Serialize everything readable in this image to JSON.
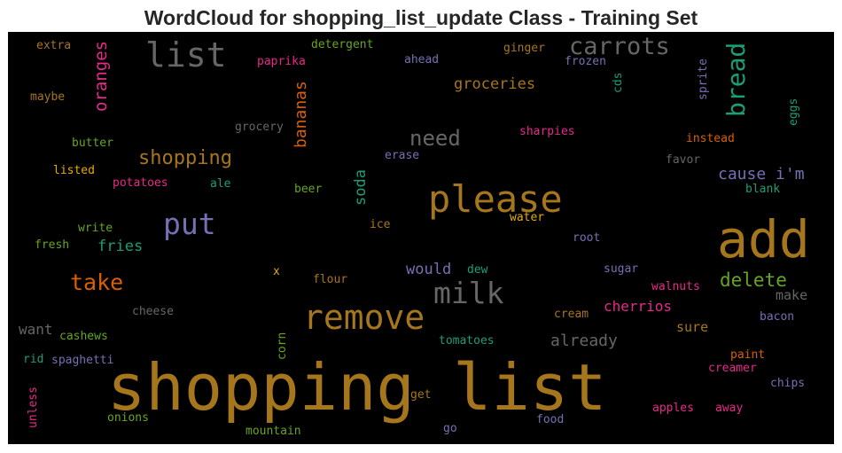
{
  "title": "WordCloud for shopping_list_update Class - Training Set",
  "chart_data": {
    "type": "wordcloud",
    "title": "WordCloud for shopping_list_update Class - Training Set",
    "background": "#000000",
    "colormap": "Dark2",
    "words": [
      {
        "text": "shopping list",
        "weight": 1.0,
        "color": "#a6761d",
        "orientation": "horizontal"
      },
      {
        "text": "add",
        "weight": 0.7,
        "color": "#a6761d",
        "orientation": "horizontal"
      },
      {
        "text": "please",
        "weight": 0.55,
        "color": "#a6761d",
        "orientation": "horizontal"
      },
      {
        "text": "remove",
        "weight": 0.5,
        "color": "#a6761d",
        "orientation": "horizontal"
      },
      {
        "text": "list",
        "weight": 0.5,
        "color": "#666666",
        "orientation": "horizontal"
      },
      {
        "text": "put",
        "weight": 0.42,
        "color": "#7570b3",
        "orientation": "horizontal"
      },
      {
        "text": "milk",
        "weight": 0.42,
        "color": "#666666",
        "orientation": "horizontal"
      },
      {
        "text": "carrots",
        "weight": 0.35,
        "color": "#666666",
        "orientation": "horizontal"
      },
      {
        "text": "bread",
        "weight": 0.35,
        "color": "#1b9e77",
        "orientation": "vertical"
      },
      {
        "text": "take",
        "weight": 0.32,
        "color": "#d95f02",
        "orientation": "horizontal"
      },
      {
        "text": "need",
        "weight": 0.3,
        "color": "#666666",
        "orientation": "horizontal"
      },
      {
        "text": "shopping",
        "weight": 0.28,
        "color": "#a6761d",
        "orientation": "horizontal"
      },
      {
        "text": "delete",
        "weight": 0.26,
        "color": "#66a61e",
        "orientation": "horizontal"
      },
      {
        "text": "oranges",
        "weight": 0.25,
        "color": "#e7298a",
        "orientation": "vertical"
      },
      {
        "text": "bananas",
        "weight": 0.24,
        "color": "#d95f02",
        "orientation": "vertical"
      },
      {
        "text": "groceries",
        "weight": 0.22,
        "color": "#a6761d",
        "orientation": "horizontal"
      },
      {
        "text": "cause i'm",
        "weight": 0.22,
        "color": "#7570b3",
        "orientation": "horizontal"
      },
      {
        "text": "already",
        "weight": 0.22,
        "color": "#666666",
        "orientation": "horizontal"
      },
      {
        "text": "soda",
        "weight": 0.22,
        "color": "#1b9e77",
        "orientation": "vertical"
      },
      {
        "text": "would",
        "weight": 0.21,
        "color": "#7570b3",
        "orientation": "horizontal"
      },
      {
        "text": "fries",
        "weight": 0.2,
        "color": "#1b9e77",
        "orientation": "horizontal"
      },
      {
        "text": "want",
        "weight": 0.19,
        "color": "#666666",
        "orientation": "horizontal"
      },
      {
        "text": "cherrios",
        "weight": 0.19,
        "color": "#e7298a",
        "orientation": "horizontal"
      },
      {
        "text": "sure",
        "weight": 0.18,
        "color": "#a6761d",
        "orientation": "horizontal"
      },
      {
        "text": "make",
        "weight": 0.17,
        "color": "#666666",
        "orientation": "horizontal"
      },
      {
        "text": "instead",
        "weight": 0.15,
        "color": "#d95f02",
        "orientation": "horizontal"
      },
      {
        "text": "extra",
        "weight": 0.14,
        "color": "#a6761d",
        "orientation": "horizontal"
      },
      {
        "text": "detergent",
        "weight": 0.14,
        "color": "#66a61e",
        "orientation": "horizontal"
      },
      {
        "text": "ginger",
        "weight": 0.14,
        "color": "#a6761d",
        "orientation": "horizontal"
      },
      {
        "text": "paprika",
        "weight": 0.14,
        "color": "#e7298a",
        "orientation": "horizontal"
      },
      {
        "text": "ahead",
        "weight": 0.14,
        "color": "#7570b3",
        "orientation": "horizontal"
      },
      {
        "text": "frozen",
        "weight": 0.14,
        "color": "#7570b3",
        "orientation": "horizontal"
      },
      {
        "text": "maybe",
        "weight": 0.14,
        "color": "#a6761d",
        "orientation": "horizontal"
      },
      {
        "text": "cds",
        "weight": 0.14,
        "color": "#1b9e77",
        "orientation": "vertical"
      },
      {
        "text": "sprite",
        "weight": 0.14,
        "color": "#7570b3",
        "orientation": "vertical"
      },
      {
        "text": "eggs",
        "weight": 0.13,
        "color": "#1b9e77",
        "orientation": "vertical"
      },
      {
        "text": "grocery",
        "weight": 0.14,
        "color": "#666666",
        "orientation": "horizontal"
      },
      {
        "text": "sharpies",
        "weight": 0.14,
        "color": "#e7298a",
        "orientation": "horizontal"
      },
      {
        "text": "butter",
        "weight": 0.14,
        "color": "#66a61e",
        "orientation": "horizontal"
      },
      {
        "text": "erase",
        "weight": 0.14,
        "color": "#7570b3",
        "orientation": "horizontal"
      },
      {
        "text": "favor",
        "weight": 0.14,
        "color": "#666666",
        "orientation": "horizontal"
      },
      {
        "text": "listed",
        "weight": 0.14,
        "color": "#e6ab02",
        "orientation": "horizontal"
      },
      {
        "text": "potatoes",
        "weight": 0.14,
        "color": "#e7298a",
        "orientation": "horizontal"
      },
      {
        "text": "ale",
        "weight": 0.14,
        "color": "#1b9e77",
        "orientation": "horizontal"
      },
      {
        "text": "beer",
        "weight": 0.14,
        "color": "#66a61e",
        "orientation": "horizontal"
      },
      {
        "text": "blank",
        "weight": 0.14,
        "color": "#1b9e77",
        "orientation": "horizontal"
      },
      {
        "text": "water",
        "weight": 0.14,
        "color": "#e6ab02",
        "orientation": "horizontal"
      },
      {
        "text": "ice",
        "weight": 0.14,
        "color": "#a6761d",
        "orientation": "horizontal"
      },
      {
        "text": "write",
        "weight": 0.14,
        "color": "#66a61e",
        "orientation": "horizontal"
      },
      {
        "text": "fresh",
        "weight": 0.14,
        "color": "#66a61e",
        "orientation": "horizontal"
      },
      {
        "text": "root",
        "weight": 0.14,
        "color": "#7570b3",
        "orientation": "horizontal"
      },
      {
        "text": "sugar",
        "weight": 0.14,
        "color": "#7570b3",
        "orientation": "horizontal"
      },
      {
        "text": "dew",
        "weight": 0.14,
        "color": "#1b9e77",
        "orientation": "horizontal"
      },
      {
        "text": "x",
        "weight": 0.14,
        "color": "#e6ab02",
        "orientation": "horizontal"
      },
      {
        "text": "flour",
        "weight": 0.14,
        "color": "#a6761d",
        "orientation": "horizontal"
      },
      {
        "text": "walnuts",
        "weight": 0.14,
        "color": "#e7298a",
        "orientation": "horizontal"
      },
      {
        "text": "cheese",
        "weight": 0.14,
        "color": "#666666",
        "orientation": "horizontal"
      },
      {
        "text": "cream",
        "weight": 0.14,
        "color": "#a6761d",
        "orientation": "horizontal"
      },
      {
        "text": "bacon",
        "weight": 0.14,
        "color": "#7570b3",
        "orientation": "horizontal"
      },
      {
        "text": "cashews",
        "weight": 0.14,
        "color": "#66a61e",
        "orientation": "horizontal"
      },
      {
        "text": "corn",
        "weight": 0.14,
        "color": "#66a61e",
        "orientation": "vertical"
      },
      {
        "text": "tomatoes",
        "weight": 0.14,
        "color": "#1b9e77",
        "orientation": "horizontal"
      },
      {
        "text": "rid",
        "weight": 0.14,
        "color": "#1b9e77",
        "orientation": "horizontal"
      },
      {
        "text": "spaghetti",
        "weight": 0.14,
        "color": "#7570b3",
        "orientation": "horizontal"
      },
      {
        "text": "paint",
        "weight": 0.14,
        "color": "#d95f02",
        "orientation": "horizontal"
      },
      {
        "text": "creamer",
        "weight": 0.14,
        "color": "#e7298a",
        "orientation": "horizontal"
      },
      {
        "text": "chips",
        "weight": 0.14,
        "color": "#7570b3",
        "orientation": "horizontal"
      },
      {
        "text": "unless",
        "weight": 0.14,
        "color": "#e7298a",
        "orientation": "vertical"
      },
      {
        "text": "get",
        "weight": 0.14,
        "color": "#a6761d",
        "orientation": "horizontal"
      },
      {
        "text": "onions",
        "weight": 0.14,
        "color": "#66a61e",
        "orientation": "horizontal"
      },
      {
        "text": "food",
        "weight": 0.14,
        "color": "#7570b3",
        "orientation": "horizontal"
      },
      {
        "text": "apples",
        "weight": 0.14,
        "color": "#e7298a",
        "orientation": "horizontal"
      },
      {
        "text": "away",
        "weight": 0.14,
        "color": "#e7298a",
        "orientation": "horizontal"
      },
      {
        "text": "mountain",
        "weight": 0.14,
        "color": "#66a61e",
        "orientation": "horizontal"
      },
      {
        "text": "go",
        "weight": 0.14,
        "color": "#7570b3",
        "orientation": "horizontal"
      }
    ]
  }
}
